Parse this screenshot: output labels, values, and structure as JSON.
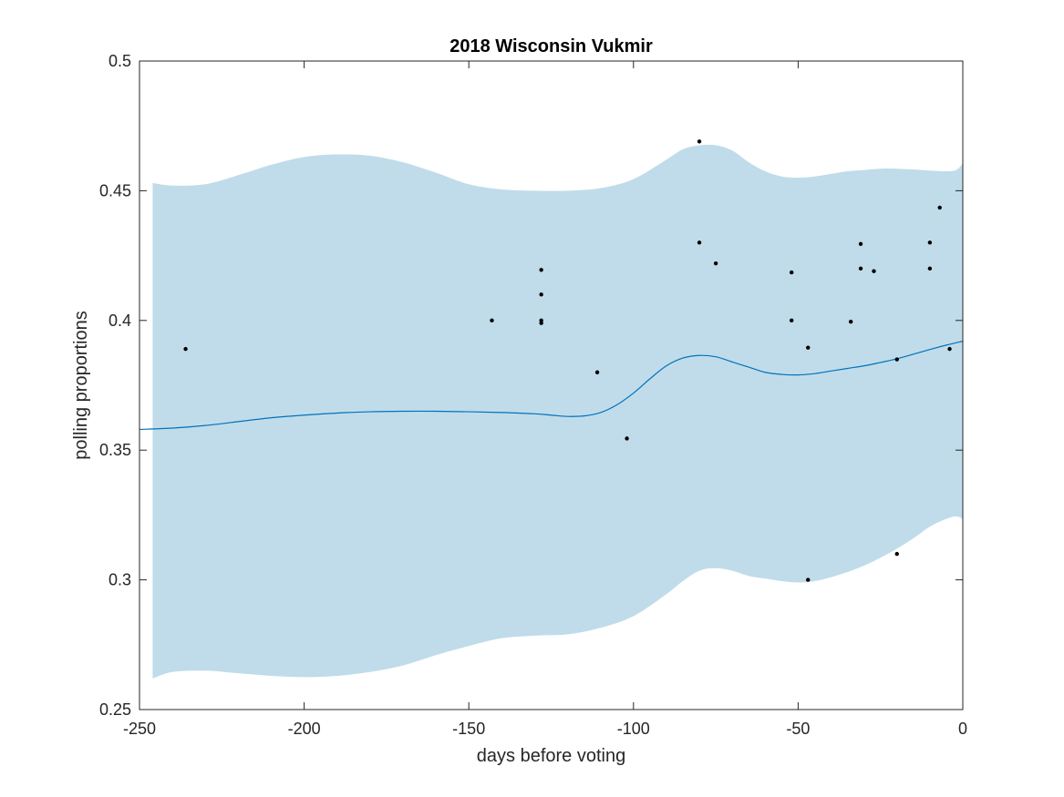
{
  "chart_data": {
    "type": "line",
    "title": "2018 Wisconsin Vukmir",
    "xlabel": "days before voting",
    "ylabel": "polling proportions",
    "xlim": [
      -250,
      0
    ],
    "ylim": [
      0.25,
      0.5
    ],
    "xticks": [
      -250,
      -200,
      -150,
      -100,
      -50,
      0
    ],
    "xtick_labels": [
      "-250",
      "-200",
      "-150",
      "-100",
      "-50",
      "0"
    ],
    "yticks": [
      0.25,
      0.3,
      0.35,
      0.4,
      0.45,
      0.5
    ],
    "ytick_labels": [
      "0.25",
      "0.3",
      "0.35",
      "0.4",
      "0.45",
      "0.5"
    ],
    "grid": false,
    "colors": {
      "band": "#c0dcea",
      "line": "#0072bd",
      "points": "#000000",
      "axis": "#262626"
    },
    "band": {
      "x": [
        -246,
        -240,
        -230,
        -220,
        -210,
        -200,
        -190,
        -180,
        -170,
        -160,
        -150,
        -140,
        -130,
        -120,
        -110,
        -100,
        -90,
        -85,
        -80,
        -75,
        -70,
        -65,
        -60,
        -55,
        -50,
        -45,
        -40,
        -35,
        -30,
        -25,
        -20,
        -15,
        -10,
        -5,
        -2,
        0
      ],
      "upper": [
        0.453,
        0.452,
        0.4525,
        0.456,
        0.46,
        0.463,
        0.464,
        0.4635,
        0.461,
        0.457,
        0.4525,
        0.4505,
        0.45,
        0.45,
        0.451,
        0.4545,
        0.462,
        0.466,
        0.4675,
        0.4675,
        0.4655,
        0.461,
        0.4575,
        0.4555,
        0.455,
        0.4555,
        0.4565,
        0.4575,
        0.458,
        0.4585,
        0.4585,
        0.4582,
        0.4578,
        0.4575,
        0.458,
        0.4605
      ],
      "lower": [
        0.262,
        0.2645,
        0.265,
        0.264,
        0.263,
        0.2625,
        0.263,
        0.2645,
        0.267,
        0.271,
        0.2745,
        0.2775,
        0.2785,
        0.279,
        0.2815,
        0.286,
        0.2945,
        0.2995,
        0.3035,
        0.3045,
        0.3035,
        0.3015,
        0.3005,
        0.2995,
        0.299,
        0.2995,
        0.301,
        0.303,
        0.3055,
        0.3085,
        0.312,
        0.316,
        0.3205,
        0.3235,
        0.3245,
        0.3235
      ]
    },
    "series": [
      {
        "x": [
          -250,
          -240,
          -230,
          -220,
          -210,
          -200,
          -190,
          -180,
          -170,
          -160,
          -150,
          -140,
          -130,
          -125,
          -120,
          -115,
          -110,
          -105,
          -100,
          -95,
          -90,
          -85,
          -80,
          -75,
          -70,
          -65,
          -60,
          -55,
          -50,
          -45,
          -40,
          -35,
          -30,
          -25,
          -20,
          -15,
          -10,
          -5,
          0
        ],
        "y": [
          0.358,
          0.3585,
          0.3595,
          0.361,
          0.3625,
          0.3635,
          0.3643,
          0.3648,
          0.365,
          0.365,
          0.3648,
          0.3645,
          0.364,
          0.3635,
          0.363,
          0.3632,
          0.3645,
          0.3675,
          0.372,
          0.3775,
          0.3825,
          0.3855,
          0.3865,
          0.386,
          0.384,
          0.382,
          0.38,
          0.3792,
          0.379,
          0.3795,
          0.3805,
          0.3815,
          0.3825,
          0.3838,
          0.3852,
          0.387,
          0.3888,
          0.3905,
          0.392
        ]
      }
    ],
    "points": [
      {
        "x": -236,
        "y": 0.389
      },
      {
        "x": -143,
        "y": 0.4
      },
      {
        "x": -128,
        "y": 0.4195
      },
      {
        "x": -128,
        "y": 0.41
      },
      {
        "x": -128,
        "y": 0.4
      },
      {
        "x": -128,
        "y": 0.399
      },
      {
        "x": -111,
        "y": 0.38
      },
      {
        "x": -102,
        "y": 0.3545
      },
      {
        "x": -80,
        "y": 0.469
      },
      {
        "x": -80,
        "y": 0.43
      },
      {
        "x": -75,
        "y": 0.422
      },
      {
        "x": -52,
        "y": 0.4185
      },
      {
        "x": -52,
        "y": 0.4
      },
      {
        "x": -47,
        "y": 0.3895
      },
      {
        "x": -47,
        "y": 0.3
      },
      {
        "x": -34,
        "y": 0.3995
      },
      {
        "x": -31,
        "y": 0.4295
      },
      {
        "x": -31,
        "y": 0.42
      },
      {
        "x": -27,
        "y": 0.419
      },
      {
        "x": -20,
        "y": 0.385
      },
      {
        "x": -20,
        "y": 0.31
      },
      {
        "x": -10,
        "y": 0.43
      },
      {
        "x": -10,
        "y": 0.42
      },
      {
        "x": -7,
        "y": 0.4435
      },
      {
        "x": -4,
        "y": 0.389
      }
    ]
  }
}
